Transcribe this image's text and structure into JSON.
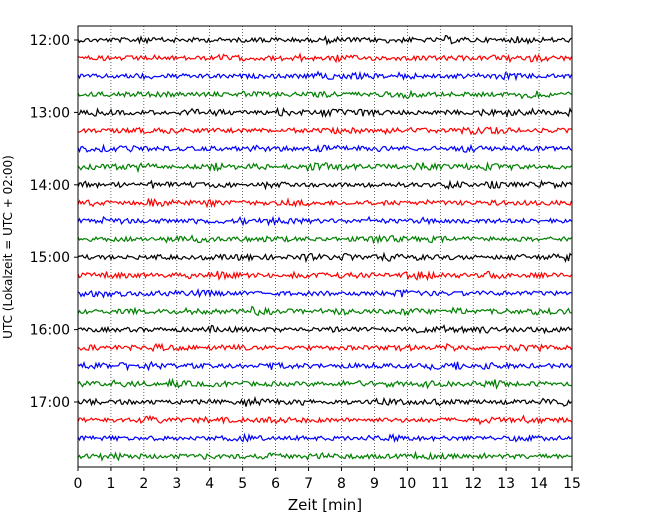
{
  "chart_data": {
    "type": "line",
    "title": "",
    "xlabel": "Zeit  [min]",
    "ylabel": "UTC (Lokalzeit = UTC + 02:00)",
    "xlim": [
      0,
      15
    ],
    "x_ticks": [
      "0",
      "1",
      "2",
      "3",
      "4",
      "5",
      "6",
      "7",
      "8",
      "9",
      "10",
      "11",
      "12",
      "13",
      "14",
      "15"
    ],
    "y_ticks": [
      "12:00",
      "13:00",
      "14:00",
      "15:00",
      "16:00",
      "17:00"
    ],
    "grid": "vertical dotted at each minute",
    "colors": [
      "#000000",
      "#ff0000",
      "#0000ff",
      "#008000"
    ],
    "traces_per_hour": 4,
    "trace_start_times": [
      "12:00",
      "12:15",
      "12:30",
      "12:45",
      "13:00",
      "13:15",
      "13:30",
      "13:45",
      "14:00",
      "14:15",
      "14:30",
      "14:45",
      "15:00",
      "15:15",
      "15:30",
      "15:45",
      "16:00",
      "16:15",
      "16:30",
      "16:45",
      "17:00",
      "17:15",
      "17:30",
      "17:45"
    ]
  }
}
